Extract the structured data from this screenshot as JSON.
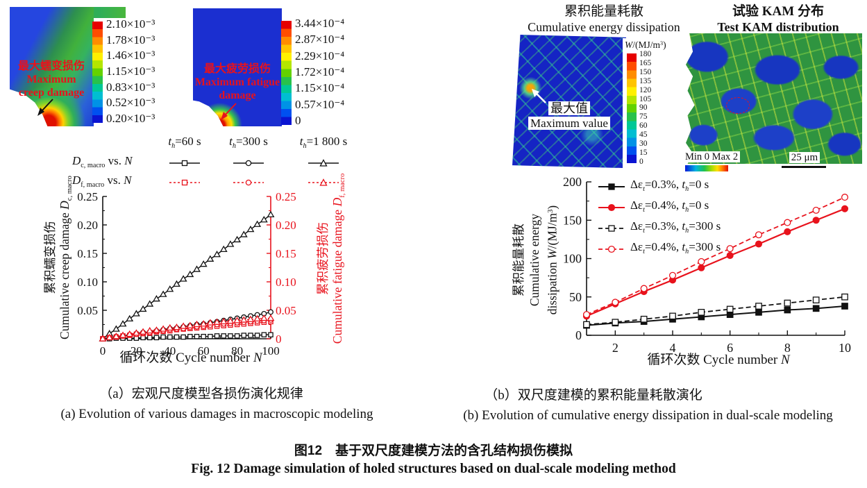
{
  "colors": {
    "accent_red": "#e8121c",
    "axis_black": "#111111",
    "contour_blue": "#1d3fd6"
  },
  "panel_a": {
    "contour_creep": {
      "annotation_cn": "最大蠕变损伤",
      "annotation_en1": "Maximum",
      "annotation_en2": "creep damage",
      "colorbar_labels": [
        "2.10×10⁻³",
        "1.78×10⁻³",
        "1.46×10⁻³",
        "1.15×10⁻³",
        "0.83×10⁻³",
        "0.52×10⁻³",
        "0.20×10⁻³"
      ]
    },
    "contour_fatigue": {
      "annotation_cn": "最大疲劳损伤",
      "annotation_en1": "Maximum fatigue",
      "annotation_en2": "damage",
      "colorbar_labels": [
        "3.44×10⁻⁴",
        "2.87×10⁻⁴",
        "2.29×10⁻⁴",
        "1.72×10⁻⁴",
        "1.15×10⁻⁴",
        "0.57×10⁻⁴",
        "0"
      ]
    },
    "legend": {
      "headers": [
        {
          "sym": "t",
          "sub": "h",
          "val": "=60 s"
        },
        {
          "sym": "t",
          "sub": "h",
          "val": "=300 s"
        },
        {
          "sym": "t",
          "sub": "h",
          "val": "=1 800 s"
        }
      ],
      "rows": [
        {
          "sym": "D",
          "sub": "c, macro",
          "mid": " vs. ",
          "n": "N"
        },
        {
          "sym": "D",
          "sub": "f, macro",
          "mid": " vs. ",
          "n": "N"
        }
      ]
    },
    "ylabel_left": {
      "cn": "累积蠕变损伤",
      "en": "Cumulative creep damage ",
      "sym": "D",
      "sub": "c, macro"
    },
    "ylabel_right": {
      "cn": "累积疲劳损伤",
      "en": "Cumulative fatigue damage ",
      "sym": "D",
      "sub": "f, macro"
    },
    "xlabel": {
      "cn": "循环次数 ",
      "en": "Cycle number ",
      "sym": "N"
    },
    "caption_cn": "（a）宏观尺度模型各损伤演化规律",
    "caption_en": "(a) Evolution of various damages in macroscopic modeling"
  },
  "panel_b": {
    "title_energy": {
      "cn": "累积能量耗散",
      "en": "Cumulative energy dissipation"
    },
    "title_kam": {
      "cn": "试验 KAM 分布",
      "en": "Test KAM distribution"
    },
    "w_colorbar": {
      "sym": "W",
      "rest": "/(MJ/m",
      "sup": "3",
      "close": ")",
      "labels": [
        "180",
        "165",
        "150",
        "135",
        "120",
        "105",
        "90",
        "75",
        "60",
        "45",
        "30",
        "15",
        "0"
      ]
    },
    "max_annotation": {
      "cn": "最大值",
      "en": "Maximum value"
    },
    "kam_scale": {
      "minmax": "Min 0 Max 2",
      "bar": "25 μm"
    },
    "legend_rows": [
      {
        "pre": "Δε",
        "sub1": "t",
        "mid": "=0.3%, ",
        "t": "t",
        "sub2": "h",
        "post": "=0 s"
      },
      {
        "pre": "Δε",
        "sub1": "t",
        "mid": "=0.4%, ",
        "t": "t",
        "sub2": "h",
        "post": "=0 s"
      },
      {
        "pre": "Δε",
        "sub1": "t",
        "mid": "=0.3%, ",
        "t": "t",
        "sub2": "h",
        "post": "=300 s"
      },
      {
        "pre": "Δε",
        "sub1": "t",
        "mid": "=0.4%, ",
        "t": "t",
        "sub2": "h",
        "post": "=300 s"
      }
    ],
    "ylabel": {
      "cn": "累积能量耗散",
      "en1": "Cumulative energy",
      "en2": "dissipation ",
      "sym": "W",
      "rest": "/(MJ/m",
      "sup": "3",
      "close": ")"
    },
    "xlabel": {
      "cn": "循环次数 ",
      "en": "Cycle number ",
      "sym": "N"
    },
    "caption_cn": "（b）双尺度建模的累积能量耗散演化",
    "caption_en": "(b) Evolution of cumulative energy dissipation in dual-scale modeling"
  },
  "figure_caption": {
    "cn": "图12　基于双尺度建模方法的含孔结构损伤模拟",
    "en": "Fig. 12  Damage simulation of holed structures based on dual-scale modeling method"
  },
  "chart_data": [
    {
      "type": "line",
      "title": "",
      "xlabel": "循环次数 Cycle number N",
      "ylabel_left": "累积蠕变损伤 Cumulative creep damage Dc,macro",
      "ylabel_right": "累积疲劳损伤 Cumulative fatigue damage Df,macro",
      "xlim": [
        0,
        100
      ],
      "ylim": [
        0,
        0.25
      ],
      "ylim_right": [
        0,
        0.25
      ],
      "xticks": [
        {
          "v": 0,
          "label": "0"
        },
        {
          "v": 20,
          "label": "20"
        },
        {
          "v": 40,
          "label": "40"
        },
        {
          "v": 60,
          "label": "60"
        },
        {
          "v": 80,
          "label": "80"
        },
        {
          "v": 100,
          "label": "100"
        }
      ],
      "xminor": [
        10,
        30,
        50,
        70,
        90
      ],
      "yticks": [
        {
          "v": 0,
          "label": ""
        },
        {
          "v": 0.05,
          "label": "0.05"
        },
        {
          "v": 0.1,
          "label": "0.10"
        },
        {
          "v": 0.15,
          "label": "0.15"
        },
        {
          "v": 0.2,
          "label": "0.20"
        },
        {
          "v": 0.25,
          "label": "0.25"
        }
      ],
      "yticks_right": [
        {
          "v": 0,
          "label": "0"
        },
        {
          "v": 0.05,
          "label": "0.05"
        },
        {
          "v": 0.1,
          "label": "0.10"
        },
        {
          "v": 0.15,
          "label": "0.15"
        },
        {
          "v": 0.2,
          "label": "0.20"
        },
        {
          "v": 0.25,
          "label": "0.25"
        }
      ],
      "yminor": [
        0.025,
        0.075,
        0.125,
        0.175,
        0.225
      ],
      "x": [
        0,
        4,
        8,
        12,
        16,
        20,
        24,
        28,
        32,
        36,
        40,
        44,
        48,
        52,
        56,
        60,
        64,
        68,
        72,
        76,
        80,
        84,
        88,
        92,
        96,
        100
      ],
      "series": [
        {
          "name": "Dc,macro vs N (th=60 s)",
          "axis": "left",
          "color": "#111111",
          "lw": 1.5,
          "dash": "",
          "marker": "square-open",
          "values": [
            0,
            0.0,
            0.001,
            0.001,
            0.001,
            0.001,
            0.002,
            0.002,
            0.002,
            0.003,
            0.003,
            0.003,
            0.003,
            0.004,
            0.004,
            0.004,
            0.004,
            0.005,
            0.005,
            0.005,
            0.005,
            0.006,
            0.006,
            0.006,
            0.007,
            0.007
          ]
        },
        {
          "name": "Dc,macro vs N (th=300 s)",
          "axis": "left",
          "color": "#111111",
          "lw": 1.5,
          "dash": "",
          "marker": "circle-open",
          "values": [
            0,
            0.002,
            0.004,
            0.005,
            0.007,
            0.009,
            0.011,
            0.012,
            0.014,
            0.016,
            0.018,
            0.019,
            0.021,
            0.023,
            0.025,
            0.026,
            0.028,
            0.03,
            0.032,
            0.034,
            0.036,
            0.038,
            0.04,
            0.042,
            0.044,
            0.047
          ]
        },
        {
          "name": "Dc,macro vs N (th=1 800 s)",
          "axis": "left",
          "color": "#111111",
          "lw": 1.5,
          "dash": "",
          "marker": "triangle-open",
          "values": [
            0,
            0.009,
            0.017,
            0.026,
            0.035,
            0.044,
            0.052,
            0.061,
            0.07,
            0.078,
            0.087,
            0.096,
            0.105,
            0.113,
            0.122,
            0.131,
            0.14,
            0.148,
            0.157,
            0.166,
            0.174,
            0.183,
            0.192,
            0.201,
            0.209,
            0.218
          ]
        },
        {
          "name": "Df,macro vs N (th=60 s)",
          "axis": "right",
          "color": "#e8121c",
          "lw": 1.3,
          "dash": "3 3",
          "marker": "square-open",
          "values": [
            0,
            0.002,
            0.003,
            0.005,
            0.006,
            0.008,
            0.009,
            0.01,
            0.012,
            0.013,
            0.014,
            0.016,
            0.017,
            0.018,
            0.019,
            0.02,
            0.021,
            0.022,
            0.023,
            0.024,
            0.025,
            0.026,
            0.027,
            0.028,
            0.029,
            0.03
          ]
        },
        {
          "name": "Df,macro vs N (th=300 s)",
          "axis": "right",
          "color": "#e8121c",
          "lw": 1.3,
          "dash": "3 3",
          "marker": "circle-open",
          "values": [
            0,
            0.002,
            0.004,
            0.005,
            0.007,
            0.008,
            0.01,
            0.011,
            0.013,
            0.014,
            0.016,
            0.017,
            0.018,
            0.02,
            0.021,
            0.022,
            0.024,
            0.025,
            0.026,
            0.027,
            0.028,
            0.029,
            0.03,
            0.031,
            0.032,
            0.033
          ]
        },
        {
          "name": "Df,macro vs N (th=1 800 s)",
          "axis": "right",
          "color": "#e8121c",
          "lw": 1.3,
          "dash": "3 3",
          "marker": "triangle-open",
          "values": [
            0,
            0.002,
            0.004,
            0.006,
            0.008,
            0.01,
            0.012,
            0.014,
            0.015,
            0.017,
            0.019,
            0.02,
            0.022,
            0.023,
            0.025,
            0.026,
            0.028,
            0.029,
            0.03,
            0.031,
            0.032,
            0.033,
            0.034,
            0.035,
            0.036,
            0.036
          ]
        }
      ]
    },
    {
      "type": "line",
      "title": "",
      "xlabel": "循环次数 Cycle number N",
      "ylabel": "累积能量耗散 Cumulative energy dissipation W/(MJ/m3)",
      "xlim": [
        1,
        10
      ],
      "ylim": [
        0,
        200
      ],
      "xticks": [
        {
          "v": 2,
          "label": "2"
        },
        {
          "v": 4,
          "label": "4"
        },
        {
          "v": 6,
          "label": "6"
        },
        {
          "v": 8,
          "label": "8"
        },
        {
          "v": 10,
          "label": "10"
        }
      ],
      "xminor": [
        3,
        5,
        7,
        9
      ],
      "yticks": [
        {
          "v": 0,
          "label": "0"
        },
        {
          "v": 50,
          "label": "50"
        },
        {
          "v": 100,
          "label": "100"
        },
        {
          "v": 150,
          "label": "150"
        },
        {
          "v": 200,
          "label": "200"
        }
      ],
      "yminor": [
        25,
        75,
        125,
        175
      ],
      "x": [
        1,
        2,
        3,
        4,
        5,
        6,
        7,
        8,
        9,
        10
      ],
      "series": [
        {
          "name": "Δεt=0.3%, th=0 s",
          "axis": "left",
          "color": "#111111",
          "lw": 2,
          "dash": "",
          "marker": "square-filled",
          "values": [
            13,
            16,
            18,
            21,
            24,
            27,
            30,
            33,
            35,
            38
          ]
        },
        {
          "name": "Δεt=0.4%, th=0 s",
          "axis": "left",
          "color": "#e8121c",
          "lw": 2.2,
          "dash": "",
          "marker": "circle-filled",
          "values": [
            25,
            41,
            57,
            72,
            88,
            104,
            119,
            135,
            150,
            165
          ]
        },
        {
          "name": "Δεt=0.3%, th=300 s",
          "axis": "left",
          "color": "#111111",
          "lw": 1.8,
          "dash": "7 4",
          "marker": "square-open",
          "values": [
            14,
            17,
            21,
            25,
            30,
            34,
            38,
            42,
            46,
            50
          ]
        },
        {
          "name": "Δεt=0.4%, th=300 s",
          "axis": "left",
          "color": "#e8121c",
          "lw": 1.8,
          "dash": "7 4",
          "marker": "circle-open",
          "values": [
            27,
            43,
            61,
            78,
            96,
            113,
            131,
            147,
            163,
            180
          ]
        }
      ]
    },
    {
      "type": "heatmap",
      "title": "Maximum creep damage contour",
      "colorbar_ticks": [
        "2.10×10⁻³",
        "1.78×10⁻³",
        "1.46×10⁻³",
        "1.15×10⁻³",
        "0.83×10⁻³",
        "0.52×10⁻³",
        "0.20×10⁻³"
      ],
      "annotation": "最大蠕变损伤 Maximum creep damage"
    },
    {
      "type": "heatmap",
      "title": "Maximum fatigue damage contour",
      "colorbar_ticks": [
        "3.44×10⁻⁴",
        "2.87×10⁻⁴",
        "2.29×10⁻⁴",
        "1.72×10⁻⁴",
        "1.15×10⁻⁴",
        "0.57×10⁻⁴",
        "0"
      ],
      "annotation": "最大疲劳损伤 Maximum fatigue damage"
    },
    {
      "type": "heatmap",
      "title": "累积能量耗散 Cumulative energy dissipation",
      "colorbar_label": "W/(MJ/m3)",
      "colorbar_ticks": [
        180,
        165,
        150,
        135,
        120,
        105,
        90,
        75,
        60,
        45,
        30,
        15,
        0
      ],
      "annotation": "最大值 Maximum value"
    },
    {
      "type": "heatmap",
      "title": "试验 KAM 分布 Test KAM distribution",
      "colorbar_ticks": [
        "Min 0",
        "Max 2"
      ],
      "scale_bar": "25 μm"
    }
  ]
}
